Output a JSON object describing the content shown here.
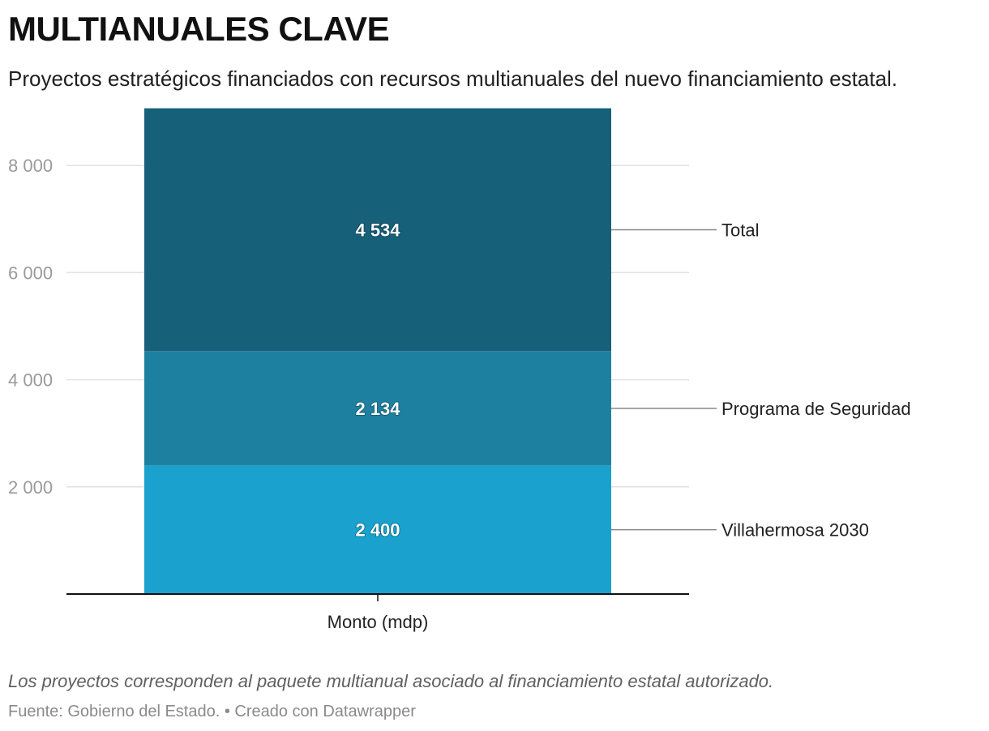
{
  "header": {
    "title": "MULTIANUALES CLAVE",
    "subtitle": "Proyectos estratégicos financiados con recursos multianuales del nuevo financiamiento estatal."
  },
  "footer": {
    "notes": "Los proyectos corresponden al paquete multianual asociado al financiamiento estatal autorizado.",
    "source": "Fuente: Gobierno del Estado. • Creado con Datawrapper"
  },
  "chart_data": {
    "type": "bar",
    "stacked": true,
    "categories": [
      "Monto (mdp)"
    ],
    "series": [
      {
        "name": "Villahermosa 2030",
        "values": [
          2400
        ],
        "label": "2 400",
        "color": "#1aa1cd"
      },
      {
        "name": "Programa de Seguridad",
        "values": [
          2134
        ],
        "label": "2 134",
        "color": "#1e80a1"
      },
      {
        "name": "Total",
        "values": [
          4534
        ],
        "label": "4 534",
        "color": "#16607a"
      }
    ],
    "ylim": [
      0,
      9068
    ],
    "yticks": [
      {
        "value": 2000,
        "label": "2 000"
      },
      {
        "value": 4000,
        "label": "4 000"
      },
      {
        "value": 6000,
        "label": "6 000"
      },
      {
        "value": 8000,
        "label": "8 000"
      }
    ],
    "grid": true,
    "legend": "right-aligned labels with leader lines"
  }
}
